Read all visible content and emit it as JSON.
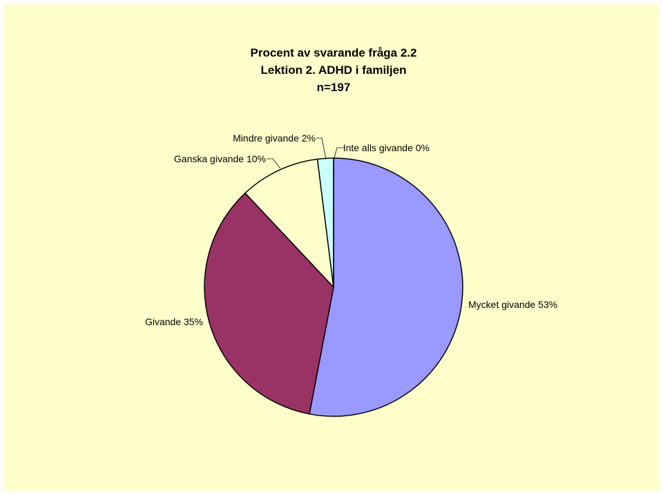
{
  "chart_data": {
    "type": "pie",
    "title_lines": [
      "Procent av svarande fråga 2.2",
      "Lektion 2. ADHD i familjen",
      "n=197"
    ],
    "slices": [
      {
        "name": "Mycket givande",
        "value": 53,
        "label": "Mycket givande 53%",
        "color": "#9999ff"
      },
      {
        "name": "Givande",
        "value": 35,
        "label": "Givande 35%",
        "color": "#993366"
      },
      {
        "name": "Ganska givande",
        "value": 10,
        "label": "Ganska givande 10%",
        "color": "#ffffcc"
      },
      {
        "name": "Mindre givande",
        "value": 2,
        "label": "Mindre givande 2%",
        "color": "#ccffff"
      },
      {
        "name": "Inte alls givande",
        "value": 0,
        "label": "Inte alls givande 0%",
        "color": "#660066"
      }
    ],
    "background": "#ffffcc",
    "legend": "none"
  }
}
